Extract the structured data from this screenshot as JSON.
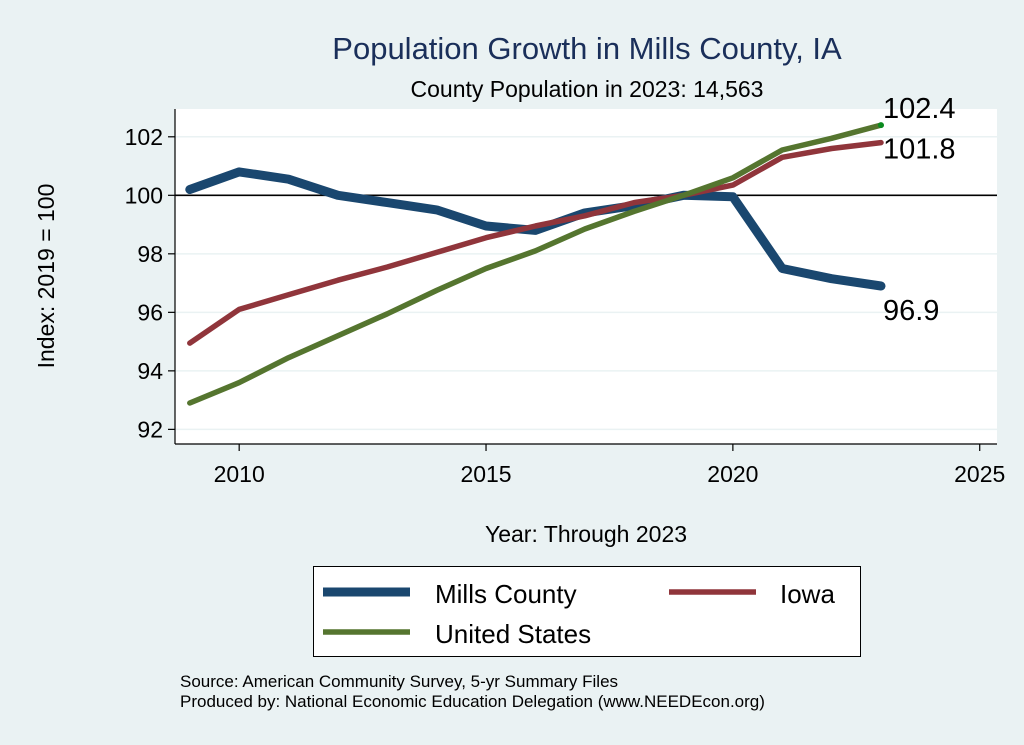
{
  "chart_data": {
    "type": "line",
    "title": "Population Growth in Mills County, IA",
    "subtitle": "County Population in 2023: 14,563",
    "xlabel": "Year: Through 2023",
    "ylabel": "Index: 2019 = 100",
    "xlim": [
      2008.7,
      2025.35
    ],
    "ylim": [
      91.5,
      102.95
    ],
    "x_ticks": [
      2010,
      2015,
      2020,
      2025
    ],
    "y_ticks": [
      92,
      94,
      96,
      98,
      100,
      102
    ],
    "reference_line": 100,
    "grid": true,
    "x": [
      2009,
      2010,
      2011,
      2012,
      2013,
      2014,
      2015,
      2016,
      2017,
      2018,
      2019,
      2020,
      2021,
      2022,
      2023
    ],
    "series": [
      {
        "name": "Mills  County",
        "color": "#1a476f",
        "values": [
          100.2,
          100.8,
          100.55,
          100.0,
          99.75,
          99.5,
          98.95,
          98.8,
          99.4,
          99.65,
          100.0,
          99.95,
          97.5,
          97.15,
          96.9
        ],
        "end_label": "96.9"
      },
      {
        "name": "Iowa",
        "color": "#90353b",
        "values": [
          94.95,
          96.1,
          96.6,
          97.1,
          97.55,
          98.05,
          98.55,
          98.95,
          99.3,
          99.75,
          100.0,
          100.35,
          101.3,
          101.6,
          101.8
        ],
        "end_label": "101.8"
      },
      {
        "name": "United States",
        "color": "#55752f",
        "values": [
          92.9,
          93.6,
          94.45,
          95.2,
          95.95,
          96.75,
          97.5,
          98.1,
          98.85,
          99.45,
          100.0,
          100.6,
          101.55,
          101.95,
          102.4
        ],
        "end_label": "102.4"
      }
    ],
    "legend": {
      "placement": "bottom",
      "entries": [
        "Mills  County",
        "Iowa",
        "United States"
      ]
    },
    "notes": [
      "Source: American Community Survey, 5-yr Summary Files",
      "Produced by: National Economic Education Delegation (www.NEEDEcon.org)"
    ]
  }
}
